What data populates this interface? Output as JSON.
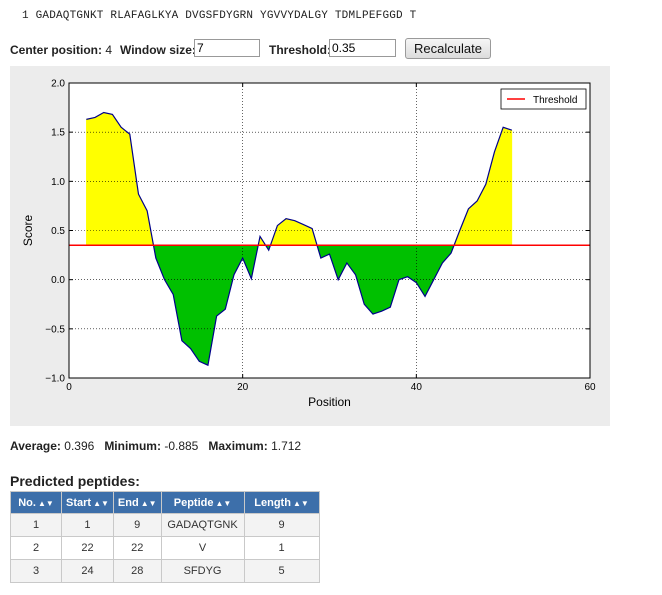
{
  "sequence_line": "1 GADAQTGNKT RLAFAGLKYA DVGSFDYGRN YGVVYDALGY TDMLPEFGGD T",
  "controls": {
    "center_label": "Center position:",
    "center_value": "4",
    "window_label": "Window size:",
    "window_value": "7",
    "threshold_label": "Threshold:",
    "threshold_value": "0.35",
    "recalculate_label": "Recalculate"
  },
  "chart_data": {
    "type": "area",
    "xlabel": "Position",
    "ylabel": "Score",
    "xlim": [
      0,
      60
    ],
    "ylim": [
      -1.0,
      2.0
    ],
    "xticks": [
      "0",
      "20",
      "40",
      "60"
    ],
    "yticks": [
      "2.0",
      "1.5",
      "1.0",
      "0.5",
      "0.0",
      "−0.5",
      "−1.0"
    ],
    "grid": true,
    "legend_position": "top-right",
    "threshold": {
      "name": "Threshold",
      "value": 0.35,
      "color": "#ff0000"
    },
    "colors": {
      "above": "#ffff00",
      "below": "#00c000",
      "line": "#00008b"
    },
    "x": [
      2,
      3,
      4,
      5,
      6,
      7,
      8,
      9,
      10,
      11,
      12,
      13,
      14,
      15,
      16,
      17,
      18,
      19,
      20,
      21,
      22,
      23,
      24,
      25,
      26,
      27,
      28,
      29,
      30,
      31,
      32,
      33,
      34,
      35,
      36,
      37,
      38,
      39,
      40,
      41,
      42,
      43,
      44,
      45,
      46,
      47,
      48,
      49,
      50,
      51
    ],
    "values": [
      1.63,
      1.65,
      1.7,
      1.68,
      1.55,
      1.48,
      0.87,
      0.7,
      0.22,
      0.0,
      -0.15,
      -0.62,
      -0.7,
      -0.83,
      -0.87,
      -0.37,
      -0.3,
      0.05,
      0.22,
      0.01,
      0.44,
      0.3,
      0.55,
      0.62,
      0.6,
      0.56,
      0.52,
      0.22,
      0.26,
      0.0,
      0.17,
      0.05,
      -0.25,
      -0.35,
      -0.32,
      -0.28,
      0.0,
      0.03,
      -0.03,
      -0.17,
      0.0,
      0.17,
      0.27,
      0.5,
      0.72,
      0.8,
      0.97,
      1.3,
      1.55,
      1.52
    ]
  },
  "stats": {
    "average_label": "Average:",
    "average_value": "0.396",
    "minimum_label": "Minimum:",
    "minimum_value": "-0.885",
    "maximum_label": "Maximum:",
    "maximum_value": "1.712"
  },
  "peptides": {
    "title": "Predicted peptides:",
    "sort_glyph": "▲▼",
    "columns": [
      "No.",
      "Start",
      "End",
      "Peptide",
      "Length"
    ],
    "rows": [
      [
        "1",
        "1",
        "9",
        "GADAQTGNK",
        "9"
      ],
      [
        "2",
        "22",
        "22",
        "V",
        "1"
      ],
      [
        "3",
        "24",
        "28",
        "SFDYG",
        "5"
      ]
    ]
  }
}
